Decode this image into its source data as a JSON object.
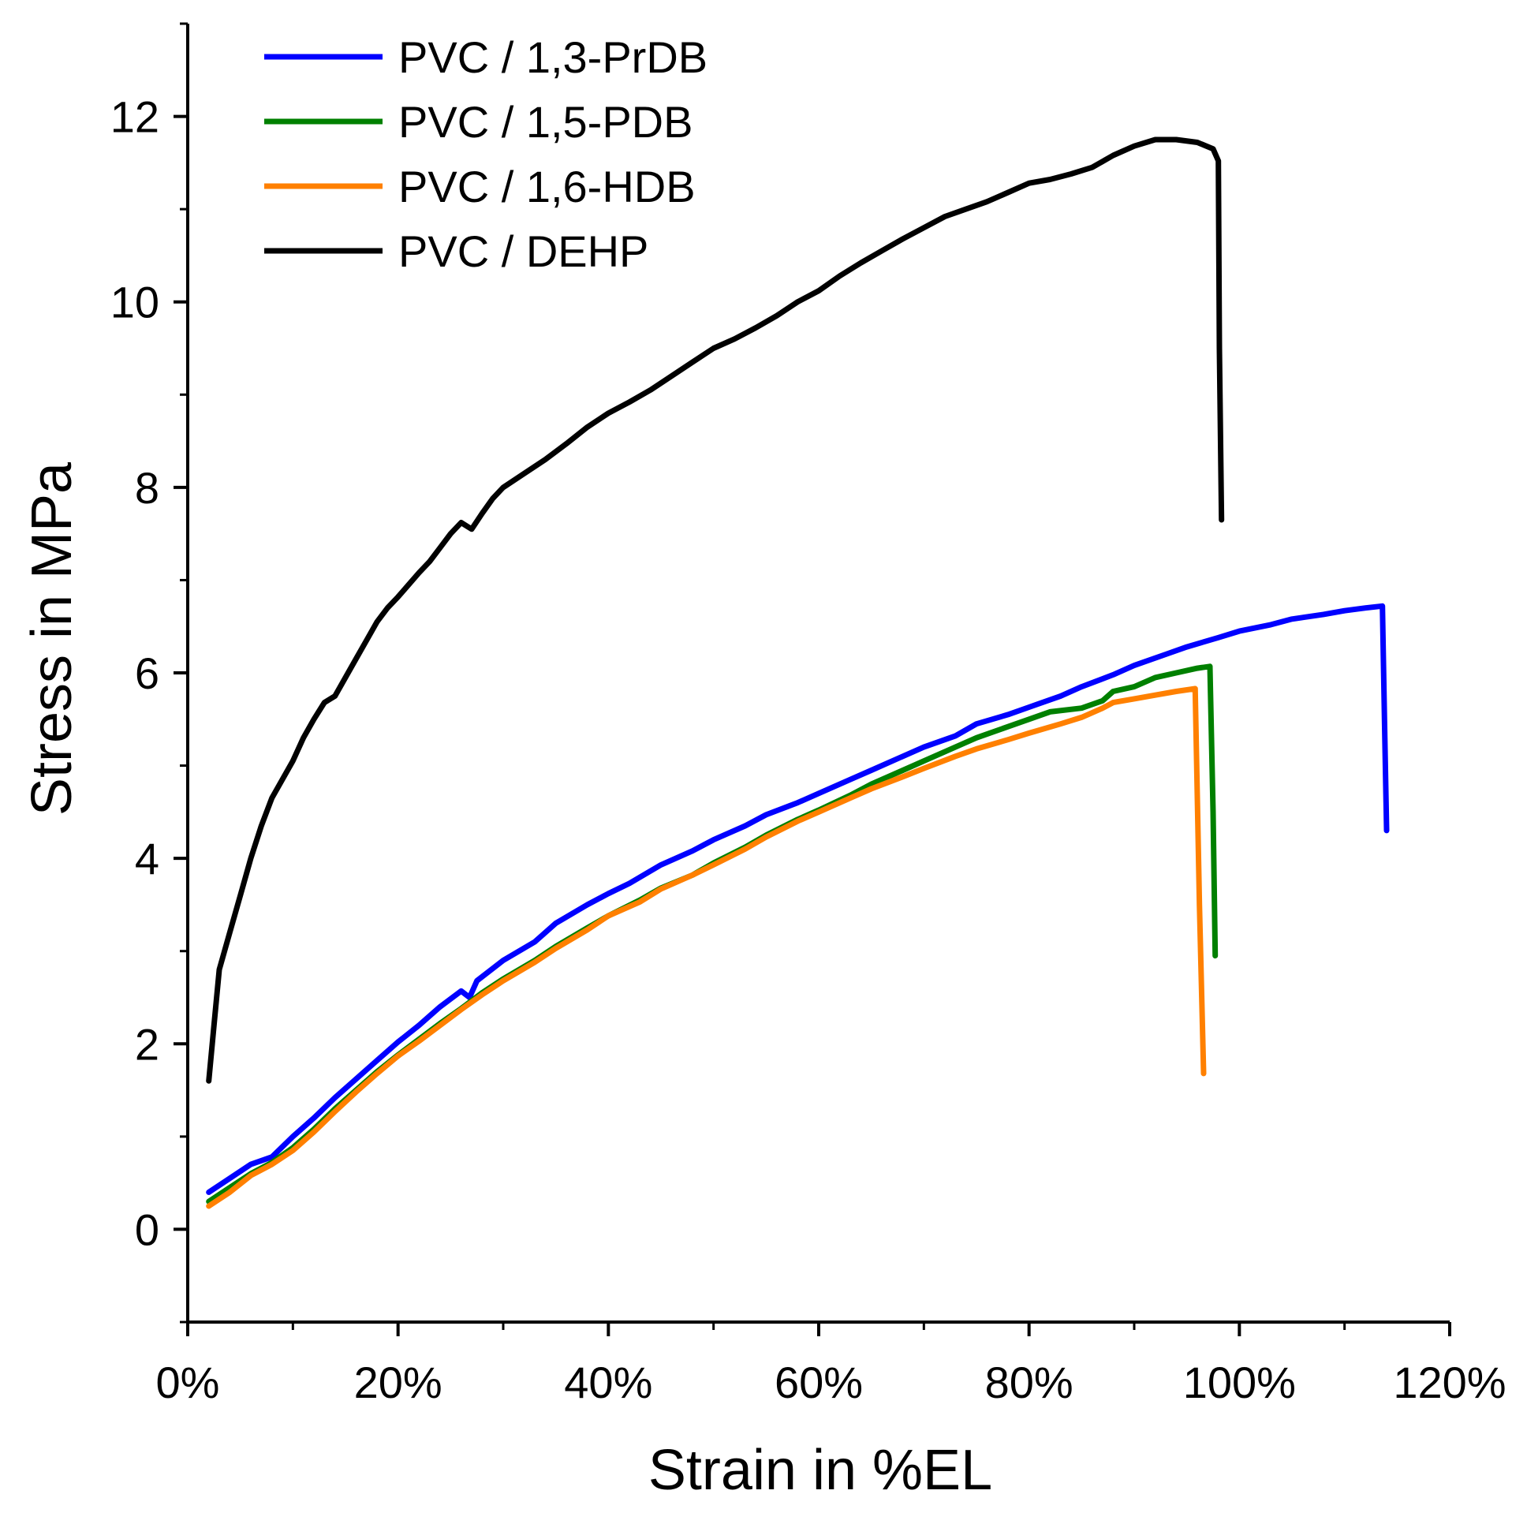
{
  "chart_data": {
    "type": "line",
    "title": "",
    "xlabel": "Strain in %EL",
    "ylabel": "Stress in MPa",
    "xlim": [
      0,
      120
    ],
    "ylim": [
      -1,
      13
    ],
    "x_major_ticks": [
      0,
      20,
      40,
      60,
      80,
      100,
      120
    ],
    "x_tick_labels": [
      "0%",
      "20%",
      "40%",
      "60%",
      "80%",
      "100%",
      "120%"
    ],
    "y_major_ticks": [
      0,
      2,
      4,
      6,
      8,
      10,
      12
    ],
    "y_tick_labels": [
      "0",
      "2",
      "4",
      "6",
      "8",
      "10",
      "12"
    ],
    "grid": false,
    "legend_position": "top-left",
    "series": [
      {
        "name": "PVC / 1,3-PrDB",
        "color": "#0000ff",
        "points": [
          [
            2,
            0.4
          ],
          [
            4,
            0.55
          ],
          [
            6,
            0.7
          ],
          [
            8,
            0.78
          ],
          [
            10,
            1.0
          ],
          [
            12,
            1.2
          ],
          [
            14,
            1.42
          ],
          [
            16,
            1.62
          ],
          [
            18,
            1.82
          ],
          [
            20,
            2.02
          ],
          [
            22,
            2.2
          ],
          [
            24,
            2.4
          ],
          [
            26,
            2.57
          ],
          [
            26.8,
            2.5
          ],
          [
            27.5,
            2.68
          ],
          [
            30,
            2.9
          ],
          [
            33,
            3.1
          ],
          [
            35,
            3.3
          ],
          [
            38,
            3.5
          ],
          [
            40,
            3.62
          ],
          [
            42,
            3.73
          ],
          [
            45,
            3.93
          ],
          [
            48,
            4.08
          ],
          [
            50,
            4.2
          ],
          [
            53,
            4.35
          ],
          [
            55,
            4.47
          ],
          [
            58,
            4.6
          ],
          [
            60,
            4.7
          ],
          [
            63,
            4.85
          ],
          [
            65,
            4.95
          ],
          [
            68,
            5.1
          ],
          [
            70,
            5.2
          ],
          [
            73,
            5.32
          ],
          [
            75,
            5.45
          ],
          [
            78,
            5.55
          ],
          [
            80,
            5.63
          ],
          [
            83,
            5.75
          ],
          [
            85,
            5.85
          ],
          [
            88,
            5.98
          ],
          [
            90,
            6.08
          ],
          [
            93,
            6.2
          ],
          [
            95,
            6.28
          ],
          [
            98,
            6.38
          ],
          [
            100,
            6.45
          ],
          [
            103,
            6.52
          ],
          [
            105,
            6.58
          ],
          [
            108,
            6.63
          ],
          [
            110,
            6.67
          ],
          [
            112,
            6.7
          ],
          [
            113.6,
            6.72
          ],
          [
            113.8,
            5.5
          ],
          [
            114,
            4.3
          ]
        ]
      },
      {
        "name": "PVC / 1,5-PDB",
        "color": "#008000",
        "points": [
          [
            2,
            0.3
          ],
          [
            4,
            0.45
          ],
          [
            6,
            0.6
          ],
          [
            8,
            0.72
          ],
          [
            10,
            0.88
          ],
          [
            12,
            1.08
          ],
          [
            14,
            1.3
          ],
          [
            16,
            1.5
          ],
          [
            18,
            1.7
          ],
          [
            20,
            1.88
          ],
          [
            22,
            2.05
          ],
          [
            24,
            2.22
          ],
          [
            26,
            2.38
          ],
          [
            28,
            2.55
          ],
          [
            30,
            2.7
          ],
          [
            33,
            2.9
          ],
          [
            35,
            3.05
          ],
          [
            38,
            3.25
          ],
          [
            40,
            3.38
          ],
          [
            43,
            3.55
          ],
          [
            45,
            3.68
          ],
          [
            48,
            3.82
          ],
          [
            50,
            3.95
          ],
          [
            53,
            4.12
          ],
          [
            55,
            4.25
          ],
          [
            58,
            4.42
          ],
          [
            60,
            4.52
          ],
          [
            63,
            4.68
          ],
          [
            65,
            4.8
          ],
          [
            68,
            4.95
          ],
          [
            70,
            5.05
          ],
          [
            73,
            5.2
          ],
          [
            75,
            5.3
          ],
          [
            78,
            5.42
          ],
          [
            80,
            5.5
          ],
          [
            82,
            5.58
          ],
          [
            85,
            5.62
          ],
          [
            87,
            5.7
          ],
          [
            88,
            5.8
          ],
          [
            90,
            5.85
          ],
          [
            92,
            5.95
          ],
          [
            94,
            6.0
          ],
          [
            96,
            6.05
          ],
          [
            97.2,
            6.07
          ],
          [
            97.5,
            4.5
          ],
          [
            97.7,
            2.95
          ]
        ]
      },
      {
        "name": "PVC / 1,6-HDB",
        "color": "#ff8000",
        "points": [
          [
            2,
            0.25
          ],
          [
            4,
            0.4
          ],
          [
            6,
            0.58
          ],
          [
            8,
            0.7
          ],
          [
            10,
            0.85
          ],
          [
            12,
            1.05
          ],
          [
            14,
            1.27
          ],
          [
            16,
            1.48
          ],
          [
            18,
            1.68
          ],
          [
            20,
            1.87
          ],
          [
            22,
            2.03
          ],
          [
            24,
            2.2
          ],
          [
            26,
            2.37
          ],
          [
            28,
            2.53
          ],
          [
            30,
            2.68
          ],
          [
            33,
            2.88
          ],
          [
            35,
            3.03
          ],
          [
            38,
            3.23
          ],
          [
            40,
            3.38
          ],
          [
            43,
            3.53
          ],
          [
            45,
            3.67
          ],
          [
            48,
            3.82
          ],
          [
            50,
            3.93
          ],
          [
            53,
            4.1
          ],
          [
            55,
            4.23
          ],
          [
            58,
            4.4
          ],
          [
            60,
            4.5
          ],
          [
            63,
            4.65
          ],
          [
            65,
            4.75
          ],
          [
            68,
            4.88
          ],
          [
            70,
            4.97
          ],
          [
            73,
            5.1
          ],
          [
            75,
            5.18
          ],
          [
            78,
            5.28
          ],
          [
            80,
            5.35
          ],
          [
            83,
            5.45
          ],
          [
            85,
            5.52
          ],
          [
            87,
            5.62
          ],
          [
            88,
            5.68
          ],
          [
            90,
            5.72
          ],
          [
            92,
            5.76
          ],
          [
            94,
            5.8
          ],
          [
            95.8,
            5.83
          ],
          [
            96.2,
            3.5
          ],
          [
            96.6,
            1.68
          ]
        ]
      },
      {
        "name": "PVC / DEHP",
        "color": "#000000",
        "points": [
          [
            2,
            1.6
          ],
          [
            2.5,
            2.2
          ],
          [
            3,
            2.8
          ],
          [
            4,
            3.2
          ],
          [
            5,
            3.6
          ],
          [
            6,
            4.0
          ],
          [
            7,
            4.35
          ],
          [
            8,
            4.65
          ],
          [
            9,
            4.85
          ],
          [
            10,
            5.05
          ],
          [
            11,
            5.3
          ],
          [
            12,
            5.5
          ],
          [
            13,
            5.68
          ],
          [
            14,
            5.75
          ],
          [
            15,
            5.95
          ],
          [
            16,
            6.15
          ],
          [
            17,
            6.35
          ],
          [
            18,
            6.55
          ],
          [
            19,
            6.7
          ],
          [
            20,
            6.82
          ],
          [
            21,
            6.95
          ],
          [
            22,
            7.08
          ],
          [
            23,
            7.2
          ],
          [
            24,
            7.35
          ],
          [
            25,
            7.5
          ],
          [
            26,
            7.62
          ],
          [
            27,
            7.55
          ],
          [
            28,
            7.72
          ],
          [
            29,
            7.88
          ],
          [
            30,
            8.0
          ],
          [
            32,
            8.15
          ],
          [
            34,
            8.3
          ],
          [
            36,
            8.47
          ],
          [
            38,
            8.65
          ],
          [
            40,
            8.8
          ],
          [
            42,
            8.92
          ],
          [
            44,
            9.05
          ],
          [
            46,
            9.2
          ],
          [
            48,
            9.35
          ],
          [
            50,
            9.5
          ],
          [
            52,
            9.6
          ],
          [
            54,
            9.72
          ],
          [
            56,
            9.85
          ],
          [
            58,
            10.0
          ],
          [
            60,
            10.12
          ],
          [
            62,
            10.28
          ],
          [
            64,
            10.42
          ],
          [
            66,
            10.55
          ],
          [
            68,
            10.68
          ],
          [
            70,
            10.8
          ],
          [
            72,
            10.92
          ],
          [
            74,
            11.0
          ],
          [
            76,
            11.08
          ],
          [
            78,
            11.18
          ],
          [
            80,
            11.28
          ],
          [
            82,
            11.32
          ],
          [
            84,
            11.38
          ],
          [
            86,
            11.45
          ],
          [
            88,
            11.58
          ],
          [
            90,
            11.68
          ],
          [
            92,
            11.75
          ],
          [
            94,
            11.75
          ],
          [
            96,
            11.72
          ],
          [
            97.5,
            11.65
          ],
          [
            98,
            11.52
          ],
          [
            98.1,
            9.5
          ],
          [
            98.3,
            7.65
          ]
        ]
      }
    ]
  }
}
